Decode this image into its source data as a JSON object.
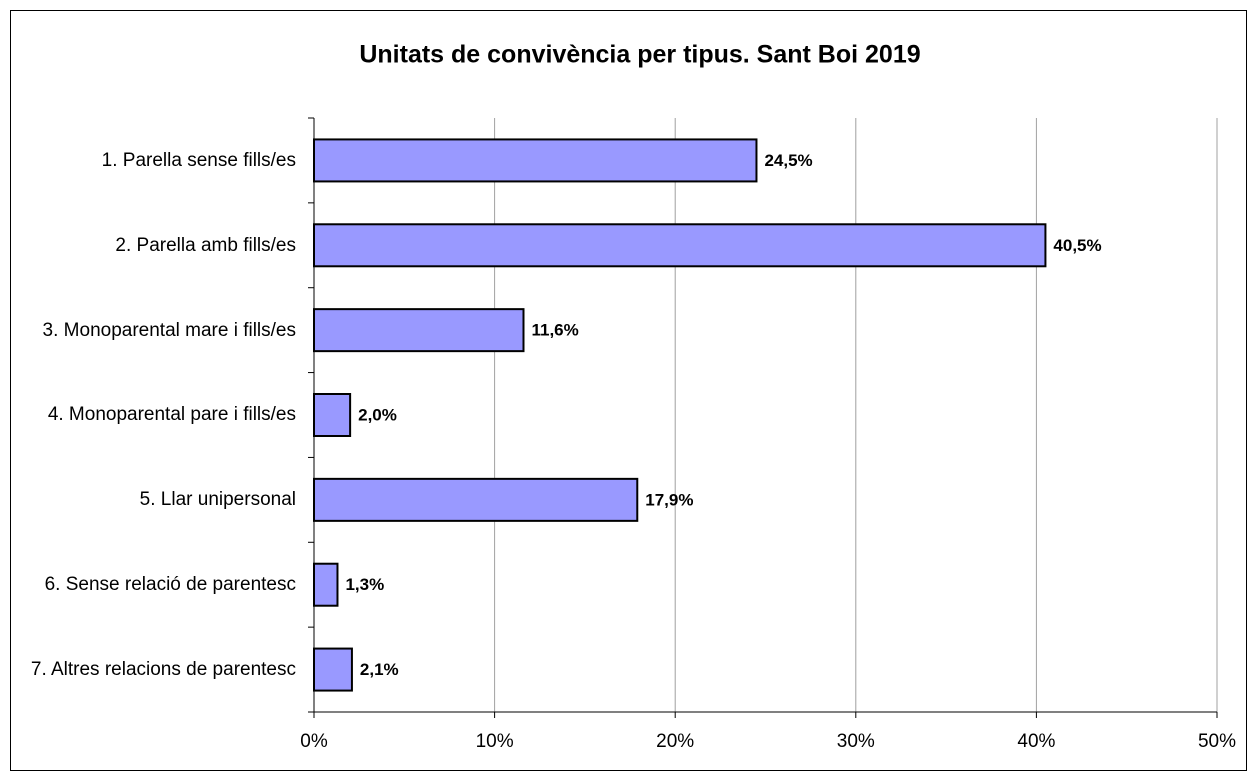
{
  "chart_data": {
    "type": "bar",
    "orientation": "horizontal",
    "title": "Unitats de convivència per tipus. Sant Boi 2019",
    "categories": [
      "1. Parella sense fills/es",
      "2. Parella amb fills/es",
      "3. Monoparental mare i fills/es",
      "4. Monoparental pare i fills/es",
      "5. Llar unipersonal",
      "6. Sense relació de parentesc",
      "7. Altres relacions de parentesc"
    ],
    "values": [
      24.5,
      40.5,
      11.6,
      2.0,
      17.9,
      1.3,
      2.1
    ],
    "value_labels": [
      "24,5%",
      "40,5%",
      "11,6%",
      "2,0%",
      "17,9%",
      "1,3%",
      "2,1%"
    ],
    "color": "#9999ff",
    "xlim": [
      0,
      50
    ],
    "xticks": [
      {
        "value": 0,
        "label": "0%"
      },
      {
        "value": 10,
        "label": "10%"
      },
      {
        "value": 20,
        "label": "20%"
      },
      {
        "value": 30,
        "label": "30%"
      },
      {
        "value": 40,
        "label": "40%"
      },
      {
        "value": 50,
        "label": "50%"
      }
    ],
    "grid": true
  }
}
